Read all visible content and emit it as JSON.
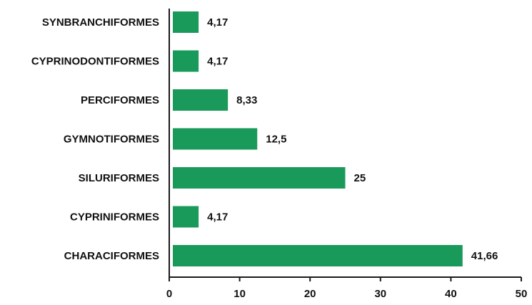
{
  "chart_data": {
    "type": "bar",
    "orientation": "horizontal",
    "categories": [
      "SYNBRANCHIFORMES",
      "CYPRINODONTIFORMES",
      "PERCIFORMES",
      "GYMNOTIFORMES",
      "SILURIFORMES",
      "CYPRINIFORMES",
      "CHARACIFORMES"
    ],
    "values": [
      4.17,
      4.17,
      8.33,
      12.5,
      25,
      4.17,
      41.66
    ],
    "value_labels": [
      "4,17",
      "4,17",
      "8,33",
      "12,5",
      "25",
      "4,17",
      "41,66"
    ],
    "xlim": [
      0,
      50
    ],
    "xticks": [
      0,
      10,
      20,
      30,
      40,
      50
    ],
    "xtick_labels": [
      "0",
      "10",
      "20",
      "30",
      "40",
      "50"
    ],
    "bar_color": "#1a9a5a",
    "grid": false,
    "title": "",
    "xlabel": "",
    "ylabel": ""
  }
}
